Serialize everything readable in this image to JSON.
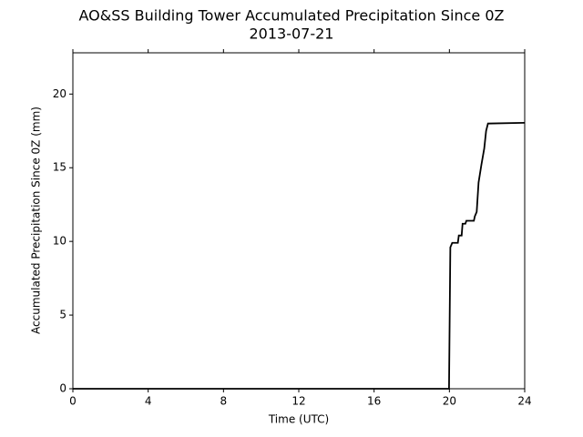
{
  "chart_data": {
    "type": "line",
    "title": "AO&SS Building Tower Accumulated Precipitation Since 0Z",
    "subtitle": "2013-07-21",
    "x_label": "Time (UTC)",
    "y_label": "Accumulated Precipitation Since 0Z (mm)",
    "x": [
      0,
      19.98,
      20.05,
      20.15,
      20.45,
      20.5,
      20.65,
      20.7,
      20.85,
      20.9,
      21.3,
      21.35,
      21.45,
      21.55,
      21.7,
      21.85,
      21.95,
      22.05,
      24
    ],
    "series": [
      {
        "name": "Accumulated Precipitation",
        "color": "#000000",
        "values": [
          0,
          0,
          9.6,
          9.9,
          9.9,
          10.4,
          10.4,
          11.2,
          11.2,
          11.4,
          11.4,
          11.7,
          12.0,
          14.0,
          15.2,
          16.3,
          17.5,
          18.0,
          18.05
        ]
      }
    ],
    "xlim": [
      0,
      24
    ],
    "xticks": [
      0,
      4,
      8,
      12,
      16,
      20,
      24
    ],
    "ylim": [
      0,
      22.8
    ],
    "yticks": [
      0,
      5,
      10,
      15,
      20
    ],
    "grid": false
  }
}
